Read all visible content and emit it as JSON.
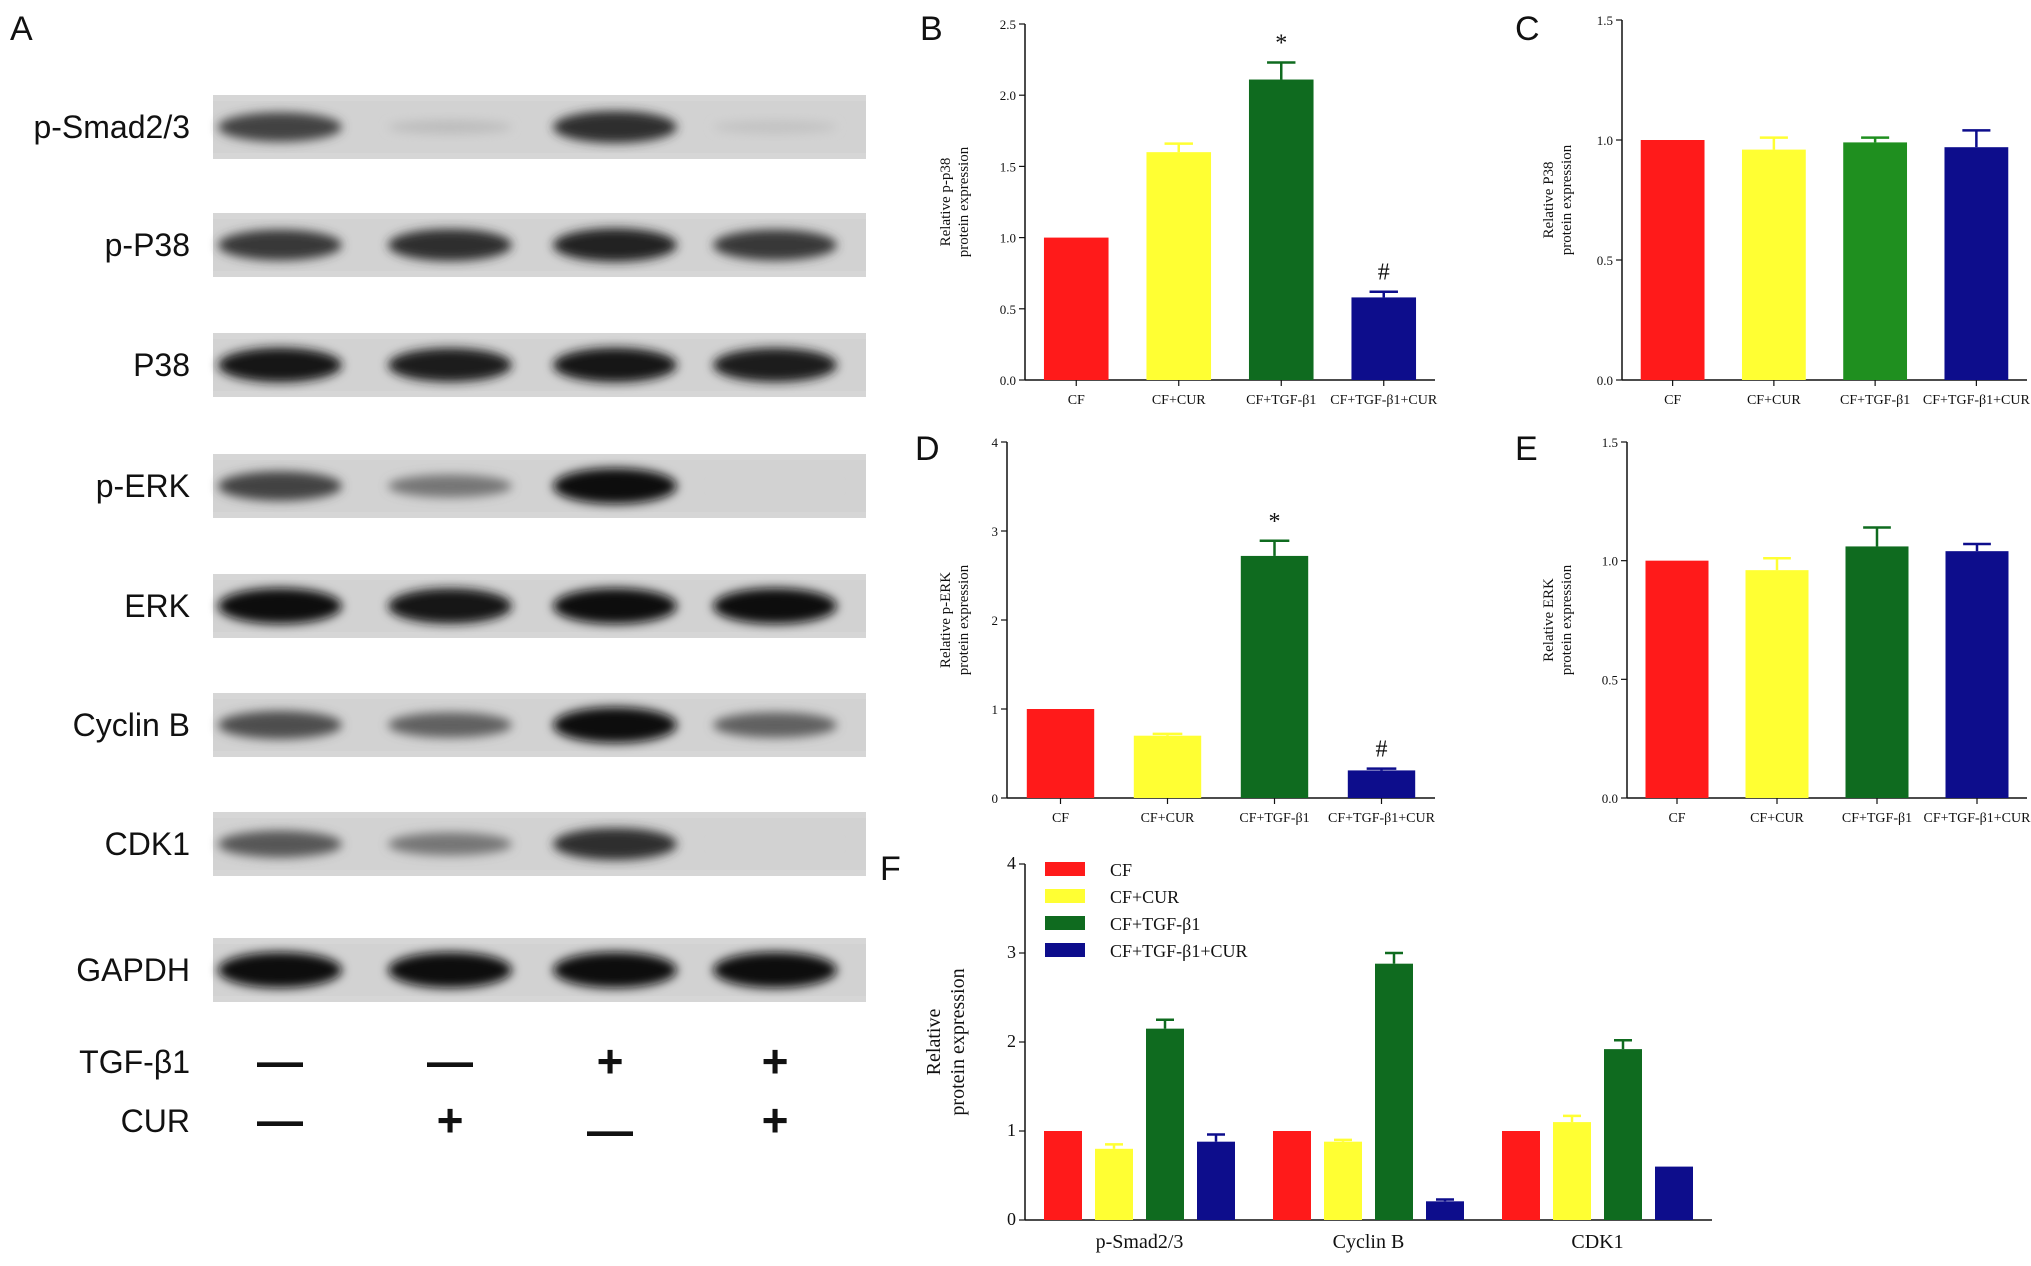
{
  "panel_labels": [
    "A",
    "B",
    "C",
    "D",
    "E",
    "F"
  ],
  "colors": {
    "CF": "#ff1a1a",
    "CF+CUR": "#ffff33",
    "CF+TGF-β1": "#0f6b1f",
    "CF+TGF-β1+CUR": "#0d0d8c",
    "panel_C_green": "#1f8f1f"
  },
  "blot": {
    "rows": [
      {
        "label": "p-Smad2/3",
        "intensities": [
          0.75,
          0.15,
          0.85,
          0.12
        ]
      },
      {
        "label": "p-P38",
        "intensities": [
          0.8,
          0.85,
          0.9,
          0.8
        ]
      },
      {
        "label": "P38",
        "intensities": [
          0.95,
          0.92,
          0.95,
          0.93
        ]
      },
      {
        "label": "p-ERK",
        "intensities": [
          0.75,
          0.5,
          1.0,
          0.05
        ]
      },
      {
        "label": "ERK",
        "intensities": [
          1.0,
          0.98,
          1.0,
          1.0
        ]
      },
      {
        "label": "Cyclin B",
        "intensities": [
          0.7,
          0.6,
          1.0,
          0.6
        ]
      },
      {
        "label": "CDK1",
        "intensities": [
          0.65,
          0.5,
          0.85,
          0.05
        ]
      },
      {
        "label": "GAPDH",
        "intensities": [
          1.0,
          1.0,
          1.0,
          1.0
        ]
      }
    ],
    "treatments": [
      {
        "label": "TGF-β1",
        "values": [
          "—",
          "—",
          "+",
          "+"
        ]
      },
      {
        "label": "CUR",
        "values": [
          "—",
          "+",
          "—",
          "+"
        ]
      }
    ]
  },
  "chart_data": [
    {
      "panel": "B",
      "type": "bar",
      "categories": [
        "CF",
        "CF+CUR",
        "CF+TGF-β1",
        "CF+TGF-β1+CUR"
      ],
      "values": [
        1.0,
        1.6,
        2.11,
        0.58
      ],
      "errors": [
        0.0,
        0.06,
        0.12,
        0.04
      ],
      "annotations": [
        "",
        "",
        "*",
        "#"
      ],
      "ylabel": [
        "Relative p-p38",
        "protein expression"
      ],
      "ylim": [
        0,
        2.5
      ],
      "yticks": [
        "0.0",
        "0.5",
        "1.0",
        "1.5",
        "2.0",
        "2.5"
      ]
    },
    {
      "panel": "C",
      "type": "bar",
      "categories": [
        "CF",
        "CF+CUR",
        "CF+TGF-β1",
        "CF+TGF-β1+CUR"
      ],
      "values": [
        1.0,
        0.96,
        0.99,
        0.97
      ],
      "errors": [
        0.0,
        0.05,
        0.02,
        0.07
      ],
      "annotations": [
        "",
        "",
        "",
        ""
      ],
      "ylabel": [
        "Relative P38",
        "protein expression"
      ],
      "ylim": [
        0,
        1.5
      ],
      "yticks": [
        "0.0",
        "0.5",
        "1.0",
        "1.5"
      ]
    },
    {
      "panel": "D",
      "type": "bar",
      "categories": [
        "CF",
        "CF+CUR",
        "CF+TGF-β1",
        "CF+TGF-β1+CUR"
      ],
      "values": [
        1.0,
        0.7,
        2.72,
        0.31
      ],
      "errors": [
        0.0,
        0.02,
        0.17,
        0.02
      ],
      "annotations": [
        "",
        "",
        "*",
        "#"
      ],
      "ylabel": [
        "Relative p-ERK",
        "protein expression"
      ],
      "ylim": [
        0,
        4
      ],
      "yticks": [
        "0",
        "1",
        "2",
        "3",
        "4"
      ]
    },
    {
      "panel": "E",
      "type": "bar",
      "categories": [
        "CF",
        "CF+CUR",
        "CF+TGF-β1",
        "CF+TGF-β1+CUR"
      ],
      "values": [
        1.0,
        0.96,
        1.06,
        1.04
      ],
      "errors": [
        0.0,
        0.05,
        0.08,
        0.03
      ],
      "annotations": [
        "",
        "",
        "",
        ""
      ],
      "ylabel": [
        "Relative ERK",
        "protein expression"
      ],
      "ylim": [
        0,
        1.5
      ],
      "yticks": [
        "0.0",
        "0.5",
        "1.0",
        "1.5"
      ]
    },
    {
      "panel": "F",
      "type": "bar",
      "categories": [
        "p-Smad2/3",
        "Cyclin B",
        "CDK1"
      ],
      "series": [
        {
          "name": "CF",
          "values": [
            1.0,
            1.0,
            1.0
          ],
          "errors": [
            0.0,
            0.0,
            0.0
          ]
        },
        {
          "name": "CF+CUR",
          "values": [
            0.8,
            0.88,
            1.1
          ],
          "errors": [
            0.05,
            0.02,
            0.07
          ]
        },
        {
          "name": "CF+TGF-β1",
          "values": [
            2.15,
            2.88,
            1.92
          ],
          "errors": [
            0.1,
            0.12,
            0.1
          ]
        },
        {
          "name": "CF+TGF-β1+CUR",
          "values": [
            0.88,
            0.21,
            0.6
          ],
          "errors": [
            0.08,
            0.02,
            0.0
          ]
        }
      ],
      "ylabel": [
        "Relative",
        "protein expression"
      ],
      "ylim": [
        0,
        4
      ],
      "yticks": [
        "0",
        "1",
        "2",
        "3",
        "4"
      ],
      "legend_position": "top-left"
    }
  ]
}
